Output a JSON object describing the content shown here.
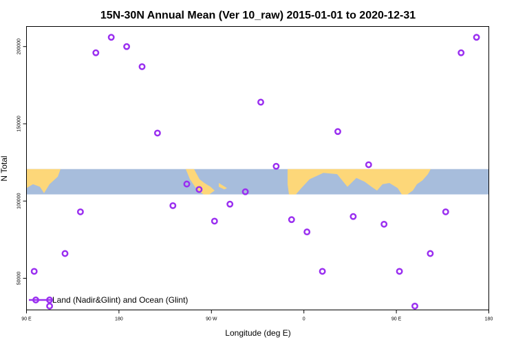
{
  "chart_data": {
    "type": "scatter",
    "title": "15N-30N Annual Mean (Ver 10_raw)   2015-01-01 to 2020-12-31",
    "xlabel": "Longitude (deg E)",
    "ylabel": "N Total",
    "xlim": [
      -90,
      210
    ],
    "ylim": [
      29500,
      213000
    ],
    "x_ticks": [
      {
        "value": -90,
        "label": "90 E"
      },
      {
        "value": -30,
        "label": "180"
      },
      {
        "value": 30,
        "label": "90 W"
      },
      {
        "value": 90,
        "label": "0"
      },
      {
        "value": 150,
        "label": "90 E"
      },
      {
        "value": 210,
        "label": "180"
      }
    ],
    "y_ticks": [
      {
        "value": 50000,
        "label": "50000"
      },
      {
        "value": 100000,
        "label": "100000"
      },
      {
        "value": 150000,
        "label": "150000"
      },
      {
        "value": 200000,
        "label": "200000"
      }
    ],
    "grid": false,
    "legend_position": "bottom-left",
    "colors": {
      "series": "#9a2ff0",
      "ocean": "#a7bddc",
      "land": "#fdd779",
      "axis": "#000000"
    },
    "map_band": {
      "ymin": 104300,
      "ymax": 120700
    },
    "series": [
      {
        "name": "Land (Nadir&Glint) and Ocean (Glint)",
        "x": [
          -85,
          -75,
          -65,
          -55,
          -45,
          -35,
          -25,
          -15,
          -5,
          5,
          14,
          22,
          32,
          42,
          52,
          62,
          72,
          82,
          92,
          102,
          112,
          122,
          132,
          142,
          152,
          162,
          172,
          182,
          192,
          202
        ],
        "y": [
          54500,
          32000,
          66000,
          93000,
          196000,
          206000,
          200000,
          187000,
          144000,
          97000,
          111000,
          107500,
          87000,
          98000,
          106000,
          164000,
          122500,
          88000,
          80000,
          54500,
          145000,
          90000,
          123500,
          85000,
          54500,
          32000,
          66000,
          93000,
          196000,
          206000
        ]
      }
    ]
  }
}
